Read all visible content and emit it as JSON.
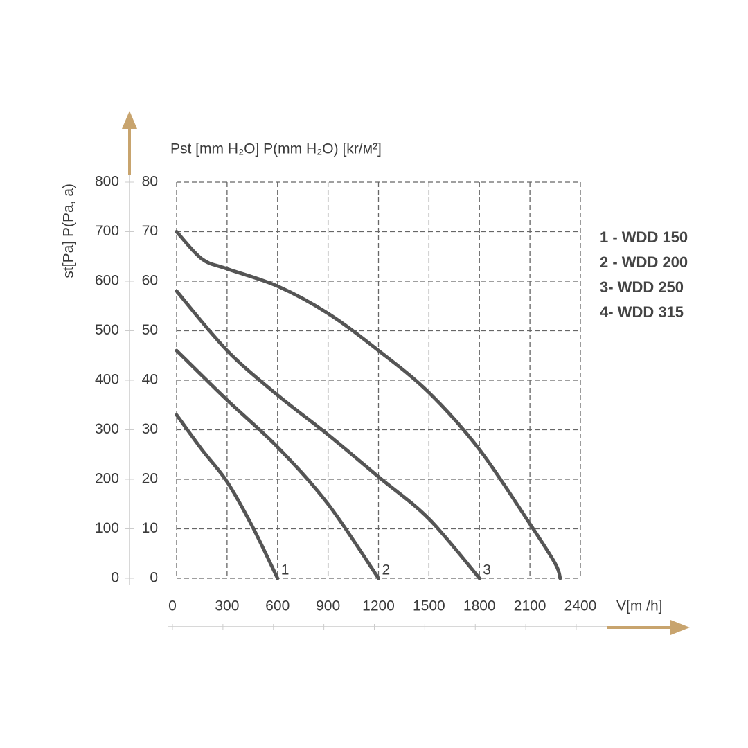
{
  "chart_data": {
    "type": "line",
    "y_label": "Pst [mm H₂O] P(mm H₂O) [kr/м²]",
    "y_label_left": "st[Pa] P(Pa,  a)",
    "x_label": "V[m /h]",
    "xlim": [
      0,
      2400
    ],
    "xticks": [
      0,
      300,
      600,
      900,
      1200,
      1500,
      1800,
      2100,
      2400
    ],
    "ylim": [
      0,
      800
    ],
    "yticks": [
      0,
      100,
      200,
      300,
      400,
      500,
      600,
      700,
      800
    ],
    "y2lim": [
      0,
      80
    ],
    "y2ticks": [
      0,
      10,
      20,
      30,
      40,
      50,
      60,
      70,
      80
    ],
    "grid": true,
    "series": [
      {
        "name": "1 - WDD 150",
        "label": "1",
        "color": "#555555",
        "x": [
          0,
          150,
          300,
          450,
          600
        ],
        "values": [
          330,
          260,
          195,
          105,
          0
        ]
      },
      {
        "name": "2 - WDD 200",
        "label": "2",
        "color": "#555555",
        "x": [
          0,
          300,
          600,
          900,
          1200
        ],
        "values": [
          460,
          360,
          265,
          150,
          0
        ]
      },
      {
        "name": "3- WDD 250",
        "label": "3",
        "color": "#555555",
        "x": [
          0,
          300,
          600,
          900,
          1200,
          1500,
          1800
        ],
        "values": [
          580,
          460,
          370,
          290,
          205,
          120,
          0
        ]
      },
      {
        "name": "4- WDD 315",
        "color": "#555555",
        "x": [
          0,
          150,
          300,
          600,
          900,
          1200,
          1500,
          1800,
          2100,
          2250,
          2280
        ],
        "values": [
          700,
          645,
          625,
          590,
          535,
          460,
          375,
          260,
          110,
          30,
          0
        ]
      }
    ]
  }
}
